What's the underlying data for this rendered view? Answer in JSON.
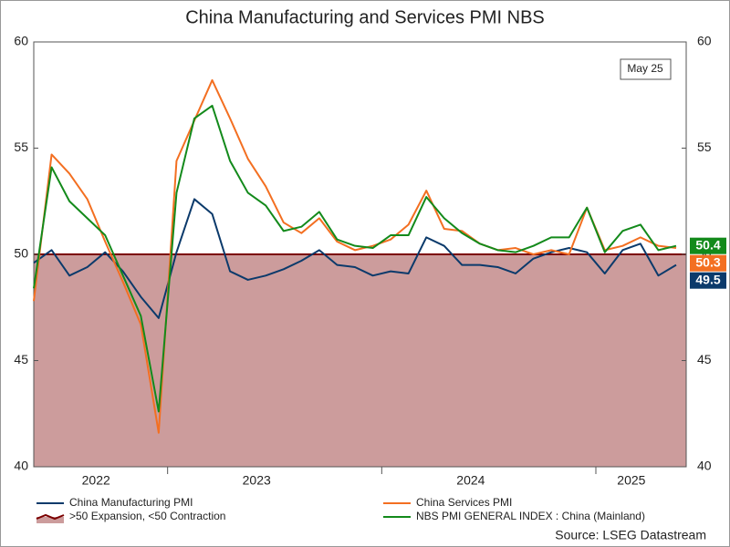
{
  "chart_data": {
    "type": "line",
    "title": "China Manufacturing and Services PMI NBS",
    "annotation": "May 25",
    "source": "Source: LSEG Datastream",
    "categories": [
      null,
      null,
      null,
      null,
      "2022",
      null,
      null,
      null,
      null,
      null,
      null,
      null,
      null,
      "2023",
      null,
      null,
      null,
      null,
      null,
      null,
      null,
      null,
      null,
      null,
      null,
      "2024",
      null,
      null,
      null,
      null,
      null,
      null,
      null,
      null,
      "2025",
      null,
      null
    ],
    "ylim": [
      40,
      60
    ],
    "yticks": [
      40,
      45,
      50,
      55,
      60
    ],
    "y2lim": [
      40,
      60
    ],
    "y2ticks": [
      40,
      45,
      50,
      55,
      60
    ],
    "threshold": {
      "name": ">50 Expansion, <50 Contraction",
      "value": 50,
      "color": "#7b0000",
      "fill": "#cc9c9c"
    },
    "series": [
      {
        "name": "China Manufacturing PMI",
        "color": "#0b3a6b",
        "values": [
          49.6,
          50.2,
          49.0,
          49.4,
          50.1,
          49.2,
          48.0,
          47.0,
          50.1,
          52.6,
          51.9,
          49.2,
          48.8,
          49.0,
          49.3,
          49.7,
          50.2,
          49.5,
          49.4,
          49.0,
          49.2,
          49.1,
          50.8,
          50.4,
          49.5,
          49.5,
          49.4,
          49.1,
          49.8,
          50.1,
          50.3,
          50.1,
          49.1,
          50.2,
          50.5,
          49.0,
          49.5
        ]
      },
      {
        "name": "China Services PMI",
        "color": "#f36f21",
        "values": [
          47.8,
          54.7,
          53.8,
          52.6,
          50.6,
          48.7,
          46.7,
          41.6,
          54.4,
          56.3,
          58.2,
          56.4,
          54.5,
          53.2,
          51.5,
          51.0,
          51.7,
          50.6,
          50.2,
          50.4,
          50.7,
          51.4,
          53.0,
          51.2,
          51.1,
          50.5,
          50.2,
          50.3,
          50.0,
          50.2,
          50.0,
          52.2,
          50.2,
          50.4,
          50.8,
          50.4,
          50.3
        ]
      },
      {
        "name": "NBS PMI GENERAL INDEX : China (Mainland)",
        "color": "#138a1b",
        "values": [
          48.4,
          54.1,
          52.5,
          51.7,
          50.9,
          49.0,
          47.1,
          42.6,
          52.9,
          56.4,
          57.0,
          54.4,
          52.9,
          52.3,
          51.1,
          51.3,
          52.0,
          50.7,
          50.4,
          50.3,
          50.9,
          50.9,
          52.7,
          51.7,
          51.0,
          50.5,
          50.2,
          50.1,
          50.4,
          50.8,
          50.8,
          52.2,
          50.1,
          51.1,
          51.4,
          50.2,
          50.4
        ]
      }
    ]
  }
}
